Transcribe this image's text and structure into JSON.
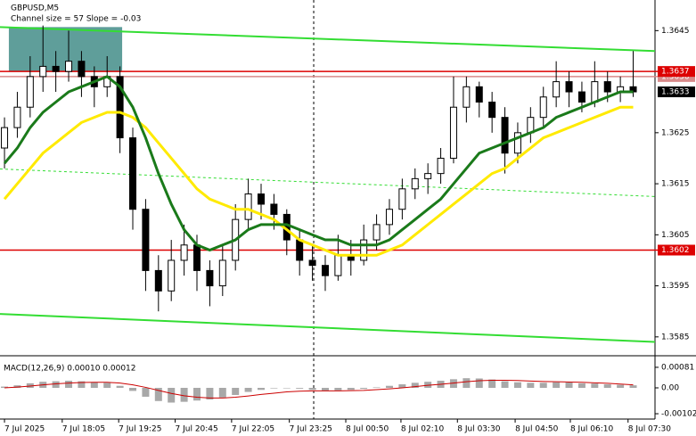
{
  "chart_data": [
    {
      "type": "candlestick",
      "title": "GBPUSD,M5",
      "subtitle": "Channel size = 57 Slope = -0.03",
      "xlim": [
        -0.35,
        50.7
      ],
      "ylim": [
        1.3582,
        1.3651
      ],
      "yticks": [
        1.3645,
        1.3625,
        1.3615,
        1.3605,
        1.3595,
        1.3585
      ],
      "candles": [
        [
          1.3622,
          1.3628,
          1.3618,
          1.3626
        ],
        [
          1.3626,
          1.3633,
          1.3624,
          1.363
        ],
        [
          1.363,
          1.364,
          1.3628,
          1.3636
        ],
        [
          1.3636,
          1.3646,
          1.3633,
          1.3638
        ],
        [
          1.3638,
          1.3641,
          1.3633,
          1.3637
        ],
        [
          1.3637,
          1.3645,
          1.3635,
          1.3639
        ],
        [
          1.3639,
          1.3641,
          1.3632,
          1.3636
        ],
        [
          1.3636,
          1.3638,
          1.363,
          1.3634
        ],
        [
          1.3634,
          1.364,
          1.3632,
          1.3636
        ],
        [
          1.3636,
          1.3638,
          1.3621,
          1.3624
        ],
        [
          1.3624,
          1.3626,
          1.3606,
          1.361
        ],
        [
          1.361,
          1.3612,
          1.3594,
          1.3598
        ],
        [
          1.3598,
          1.3601,
          1.359,
          1.3594
        ],
        [
          1.3594,
          1.3604,
          1.3592,
          1.36
        ],
        [
          1.36,
          1.3607,
          1.3597,
          1.3603
        ],
        [
          1.3603,
          1.3605,
          1.3594,
          1.3598
        ],
        [
          1.3598,
          1.36,
          1.3591,
          1.3595
        ],
        [
          1.3595,
          1.3603,
          1.3593,
          1.36
        ],
        [
          1.36,
          1.3611,
          1.3598,
          1.3608
        ],
        [
          1.3608,
          1.3616,
          1.3606,
          1.3613
        ],
        [
          1.3613,
          1.3615,
          1.3608,
          1.3611
        ],
        [
          1.3611,
          1.3613,
          1.3606,
          1.3609
        ],
        [
          1.3609,
          1.361,
          1.3601,
          1.3604
        ],
        [
          1.3604,
          1.3606,
          1.3597,
          1.36
        ],
        [
          1.36,
          1.3603,
          1.3596,
          1.3599
        ],
        [
          1.3599,
          1.3601,
          1.3594,
          1.3597
        ],
        [
          1.3597,
          1.3605,
          1.3596,
          1.3601
        ],
        [
          1.3601,
          1.3604,
          1.3597,
          1.36
        ],
        [
          1.36,
          1.3607,
          1.3599,
          1.3604
        ],
        [
          1.3604,
          1.3609,
          1.3602,
          1.3607
        ],
        [
          1.3607,
          1.3612,
          1.3605,
          1.361
        ],
        [
          1.361,
          1.3616,
          1.3608,
          1.3614
        ],
        [
          1.3614,
          1.3618,
          1.3612,
          1.3616
        ],
        [
          1.3616,
          1.3619,
          1.3613,
          1.3617
        ],
        [
          1.3617,
          1.3622,
          1.3615,
          1.362
        ],
        [
          1.362,
          1.3636,
          1.3619,
          1.363
        ],
        [
          1.363,
          1.3636,
          1.3627,
          1.3634
        ],
        [
          1.3634,
          1.3635,
          1.3628,
          1.3631
        ],
        [
          1.3631,
          1.3633,
          1.3625,
          1.3628
        ],
        [
          1.3628,
          1.363,
          1.3617,
          1.3621
        ],
        [
          1.3621,
          1.3627,
          1.3619,
          1.3625
        ],
        [
          1.3625,
          1.363,
          1.3623,
          1.3628
        ],
        [
          1.3628,
          1.3634,
          1.3626,
          1.3632
        ],
        [
          1.3632,
          1.3639,
          1.363,
          1.3635
        ],
        [
          1.3635,
          1.3637,
          1.363,
          1.3633
        ],
        [
          1.3633,
          1.3635,
          1.3629,
          1.3631
        ],
        [
          1.3631,
          1.3639,
          1.363,
          1.3635
        ],
        [
          1.3635,
          1.3637,
          1.3631,
          1.3633
        ],
        [
          1.3633,
          1.3636,
          1.3631,
          1.3634
        ],
        [
          1.3634,
          1.3641,
          1.3632,
          1.3633
        ]
      ],
      "moving_averages": [
        {
          "color": "#ffea00",
          "values": [
            1.3612,
            1.3615,
            1.3618,
            1.3621,
            1.3623,
            1.3625,
            1.3627,
            1.3628,
            1.3629,
            1.3629,
            1.3628,
            1.3626,
            1.3623,
            1.362,
            1.3617,
            1.3614,
            1.3612,
            1.3611,
            1.361,
            1.361,
            1.3609,
            1.3608,
            1.3606,
            1.3604,
            1.3603,
            1.3602,
            1.3601,
            1.3601,
            1.3601,
            1.3601,
            1.3602,
            1.3603,
            1.3605,
            1.3607,
            1.3609,
            1.3611,
            1.3613,
            1.3615,
            1.3617,
            1.3618,
            1.362,
            1.3622,
            1.3624,
            1.3625,
            1.3626,
            1.3627,
            1.3628,
            1.3629,
            1.363,
            1.363
          ]
        },
        {
          "color": "#1a7a1a",
          "values": [
            1.3619,
            1.3622,
            1.3626,
            1.3629,
            1.3631,
            1.3633,
            1.3634,
            1.3635,
            1.3636,
            1.3634,
            1.363,
            1.3624,
            1.3617,
            1.3611,
            1.3606,
            1.3603,
            1.3602,
            1.3603,
            1.3604,
            1.3606,
            1.3607,
            1.3607,
            1.3607,
            1.3606,
            1.3605,
            1.3604,
            1.3604,
            1.3603,
            1.3603,
            1.3603,
            1.3604,
            1.3606,
            1.3608,
            1.361,
            1.3612,
            1.3615,
            1.3618,
            1.3621,
            1.3622,
            1.3623,
            1.3624,
            1.3625,
            1.3626,
            1.3628,
            1.3629,
            1.363,
            1.3631,
            1.3632,
            1.3633,
            1.3633
          ]
        }
      ],
      "channel": {
        "color": "#33dd33",
        "upper": [
          1.36457,
          1.3641
        ],
        "middle": [
          1.36179,
          1.36125
        ],
        "lower": [
          1.35895,
          1.3584
        ]
      },
      "box": {
        "color": "#5f9e9a",
        "x": [
          0.34,
          9.17
        ],
        "y": [
          1.3637,
          1.36457
        ]
      },
      "levels": [
        {
          "value": 1.3636,
          "color": "#d88a8a"
        },
        {
          "value": 1.3637,
          "color": "#dd0000"
        },
        {
          "value": 1.3602,
          "color": "#dd0000"
        }
      ],
      "current_price": {
        "value": 1.3633,
        "color": "#000000"
      },
      "session_line": 24.1
    },
    {
      "type": "bar",
      "title": "MACD(12,26,9) 0.00010 0.00012",
      "xlim": [
        -0.35,
        50.7
      ],
      "ylim": [
        -0.00123,
        0.00116
      ],
      "yticks": [
        0.00081,
        {
          "value": 0,
          "label": "0.00"
        },
        -0.00102
      ],
      "color": "#a8a8a8",
      "values": [
        5e-05,
        0.0001,
        0.00018,
        0.00024,
        0.00026,
        0.00028,
        0.00026,
        0.00022,
        0.0002,
        8e-05,
        -0.00012,
        -0.00035,
        -0.00052,
        -0.00058,
        -0.00055,
        -0.0005,
        -0.00046,
        -0.00038,
        -0.00028,
        -0.00016,
        -8e-05,
        -2e-05,
        0.0,
        -3e-05,
        -8e-05,
        -0.00012,
        -0.0001,
        -8e-05,
        -4e-05,
        2e-05,
        8e-05,
        0.00014,
        0.0002,
        0.00024,
        0.00028,
        0.00034,
        0.00038,
        0.00037,
        0.00033,
        0.00026,
        0.00022,
        0.0002,
        0.0002,
        0.00022,
        0.00021,
        0.00018,
        0.00017,
        0.00014,
        0.00012,
        0.0001
      ],
      "signal": {
        "color": "#cc0000",
        "values": [
          0.0,
          3e-05,
          7e-05,
          0.00012,
          0.00016,
          0.00019,
          0.00021,
          0.00022,
          0.00022,
          0.00019,
          0.00012,
          2e-05,
          -0.0001,
          -0.00022,
          -0.00031,
          -0.00037,
          -0.0004,
          -0.0004,
          -0.00037,
          -0.00032,
          -0.00026,
          -0.00021,
          -0.00016,
          -0.00013,
          -0.00012,
          -0.00012,
          -0.00012,
          -0.00011,
          -0.0001,
          -7e-05,
          -4e-05,
          0.0,
          5e-05,
          0.0001,
          0.00014,
          0.00019,
          0.00024,
          0.00028,
          0.0003,
          0.0003,
          0.00029,
          0.00027,
          0.00025,
          0.00024,
          0.00023,
          0.00022,
          0.0002,
          0.00018,
          0.00015,
          0.00012
        ]
      },
      "xticks": [
        {
          "value": 0,
          "label": "7 Jul 2025"
        },
        {
          "value": 4.5,
          "label": "7 Jul 18:05"
        },
        {
          "value": 8.9,
          "label": "7 Jul 19:25"
        },
        {
          "value": 13.3,
          "label": "7 Jul 20:45"
        },
        {
          "value": 17.7,
          "label": "7 Jul 22:05"
        },
        {
          "value": 22.2,
          "label": "7 Jul 23:25"
        },
        {
          "value": 26.6,
          "label": "8 Jul 00:50"
        },
        {
          "value": 30.9,
          "label": "8 Jul 02:10"
        },
        {
          "value": 35.3,
          "label": "8 Jul 03:30"
        },
        {
          "value": 39.8,
          "label": "8 Jul 04:50"
        },
        {
          "value": 44.1,
          "label": "8 Jul 06:10"
        },
        {
          "value": 48.6,
          "label": "8 Jul 07:30"
        }
      ]
    }
  ]
}
